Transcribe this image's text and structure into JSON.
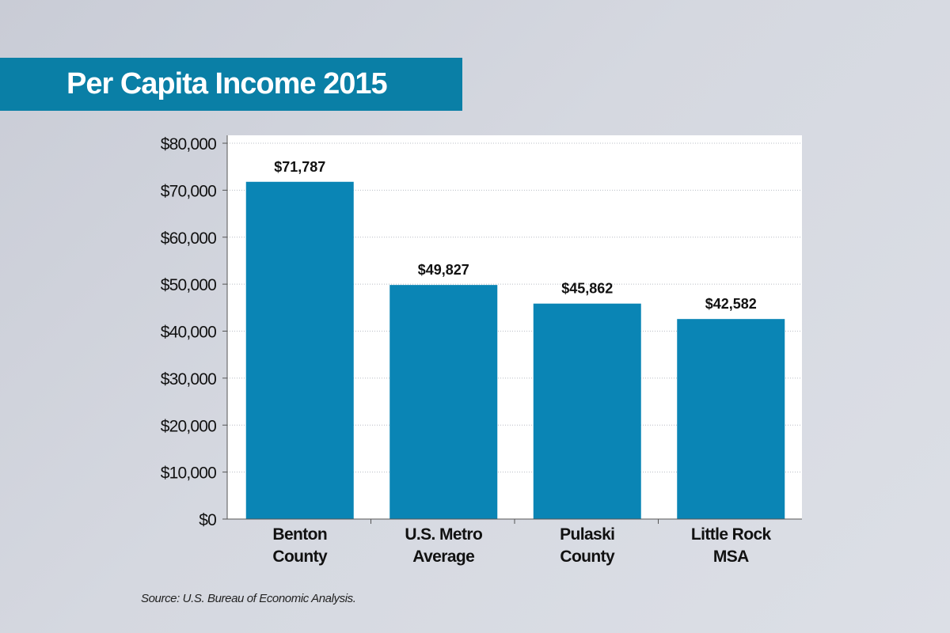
{
  "chart_data": {
    "type": "bar",
    "title": "Per Capita Income 2015",
    "categories": [
      [
        "Benton",
        "County"
      ],
      [
        "U.S. Metro",
        "Average"
      ],
      [
        "Pulaski",
        "County"
      ],
      [
        "Little Rock",
        "MSA"
      ]
    ],
    "values": [
      71787,
      49827,
      45862,
      42582
    ],
    "value_labels": [
      "$71,787",
      "$49,827",
      "$45,862",
      "$42,582"
    ],
    "y_ticks": [
      0,
      10000,
      20000,
      30000,
      40000,
      50000,
      60000,
      70000,
      80000
    ],
    "y_tick_labels": [
      "$0",
      "$10,000",
      "$20,000",
      "$30,000",
      "$40,000",
      "$50,000",
      "$60,000",
      "$70,000",
      "$80,000"
    ],
    "ylim": [
      0,
      80000
    ],
    "xlabel": "",
    "ylabel": "",
    "grid": true,
    "source": "Source: U.S. Bureau of Economic Analysis.",
    "colors": {
      "bar": "#0a85b5",
      "banner": "#0a7fa6",
      "grid": "#b8bcc4",
      "axis": "#555555",
      "text": "#111111"
    }
  }
}
